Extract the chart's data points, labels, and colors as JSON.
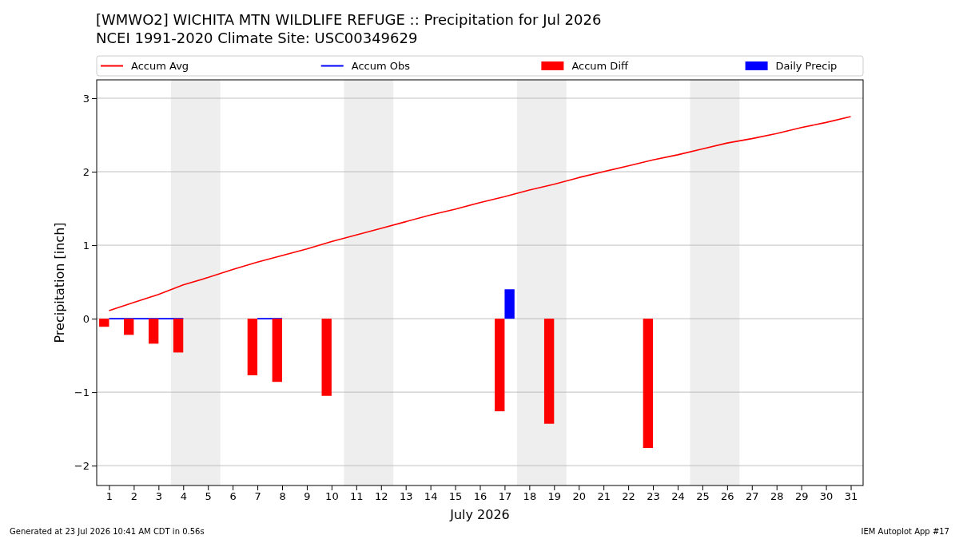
{
  "chart_data": {
    "type": "bar",
    "title": "[WMWO2] WICHITA MTN WILDLIFE REFUGE :: Precipitation for Jul 2026",
    "subtitle": "NCEI 1991-2020 Climate Site: USC00349629",
    "xlabel": "July 2026",
    "ylabel": "Precipitation [inch]",
    "x": [
      1,
      2,
      3,
      4,
      5,
      6,
      7,
      8,
      9,
      10,
      11,
      12,
      13,
      14,
      15,
      16,
      17,
      18,
      19,
      20,
      21,
      22,
      23,
      24,
      25,
      26,
      27,
      28,
      29,
      30,
      31
    ],
    "series": [
      {
        "name": "Accum Avg",
        "type": "line",
        "color": "#ff0000",
        "values": [
          0.11,
          0.22,
          0.33,
          0.46,
          0.56,
          0.67,
          0.77,
          0.86,
          0.95,
          1.05,
          1.14,
          1.23,
          1.32,
          1.41,
          1.49,
          1.58,
          1.66,
          1.75,
          1.83,
          1.92,
          2.0,
          2.08,
          2.16,
          2.23,
          2.31,
          2.39,
          2.45,
          2.52,
          2.6,
          2.67,
          2.75
        ]
      },
      {
        "name": "Accum Obs",
        "type": "line",
        "color": "#0000ff",
        "values": [
          0,
          0,
          0,
          0,
          null,
          null,
          0,
          0,
          null,
          null,
          null,
          null,
          null,
          null,
          null,
          null,
          null,
          null,
          null,
          null,
          null,
          null,
          null,
          null,
          null,
          null,
          null,
          null,
          null,
          null,
          null
        ]
      },
      {
        "name": "Accum Diff",
        "color": "#ff0000",
        "values": [
          -0.11,
          -0.22,
          -0.34,
          -0.46,
          null,
          null,
          -0.77,
          -0.86,
          null,
          -1.05,
          null,
          null,
          null,
          null,
          null,
          null,
          -1.26,
          null,
          -1.43,
          null,
          null,
          null,
          -1.76,
          null,
          null,
          null,
          null,
          null,
          null,
          null,
          null
        ]
      },
      {
        "name": "Daily Precip",
        "color": "#0000ff",
        "values": [
          null,
          null,
          null,
          null,
          null,
          null,
          null,
          null,
          null,
          null,
          null,
          null,
          null,
          null,
          null,
          null,
          0.4,
          null,
          null,
          null,
          null,
          null,
          null,
          null,
          null,
          null,
          null,
          null,
          null,
          null,
          null
        ]
      }
    ],
    "xlim": [
      0.5,
      31.5
    ],
    "xticks": [
      1,
      2,
      3,
      4,
      5,
      6,
      7,
      8,
      9,
      10,
      11,
      12,
      13,
      14,
      15,
      16,
      17,
      18,
      19,
      20,
      21,
      22,
      23,
      24,
      25,
      26,
      27,
      28,
      29,
      30,
      31
    ],
    "ylim": [
      -2.27,
      3.25
    ],
    "yticks": [
      {
        "value": -2,
        "label": "−2"
      },
      {
        "value": -1,
        "label": "−1"
      },
      0,
      1,
      2,
      3
    ],
    "bands": [
      {
        "axis": "x",
        "from": 3.5,
        "to": 5.5,
        "color": "#eeeeee"
      },
      {
        "axis": "x",
        "from": 10.5,
        "to": 12.5,
        "color": "#eeeeee"
      },
      {
        "axis": "x",
        "from": 17.5,
        "to": 19.5,
        "color": "#eeeeee"
      },
      {
        "axis": "x",
        "from": 24.5,
        "to": 26.5,
        "color": "#eeeeee"
      }
    ],
    "grid": "y",
    "legend": "top",
    "annotations": [
      "Generated at 23 Jul 2026 10:41 AM CDT in 0.56s",
      "IEM Autoplot App #17"
    ]
  }
}
